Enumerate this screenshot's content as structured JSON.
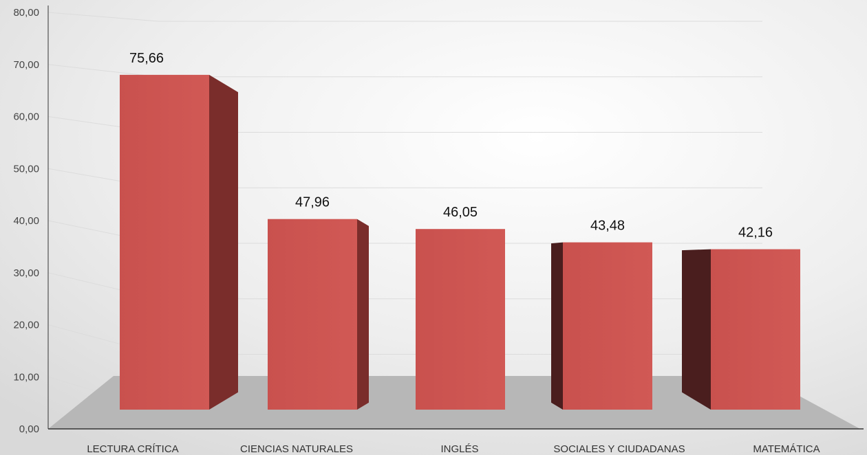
{
  "chart_data": {
    "type": "bar",
    "title": "",
    "xlabel": "",
    "ylabel": "",
    "categories": [
      "LECTURA CRÍTICA",
      "CIENCIAS NATURALES",
      "INGLÉS",
      "SOCIALES Y CIUDADANAS",
      "MATEMÁTICA"
    ],
    "values": [
      75.66,
      47.96,
      46.05,
      43.48,
      42.16
    ],
    "data_labels": [
      "75,66",
      "47,96",
      "46,05",
      "43,48",
      "42,16"
    ],
    "ylim": [
      0,
      80
    ],
    "y_ticks": [
      0,
      10,
      20,
      30,
      40,
      50,
      60,
      70,
      80
    ],
    "y_tick_labels": [
      "0,00",
      "10,00",
      "20,00",
      "30,00",
      "40,00",
      "50,00",
      "60,00",
      "70,00",
      "80,00"
    ],
    "grid": true,
    "legend": "none",
    "style": "3d-column",
    "colors": {
      "bar_front": "#c9514e",
      "bar_front_light": "#d15955",
      "bar_side": "#7a2d2b",
      "bar_side_dark": "#4a1e1e",
      "floor": "#b7b7b7",
      "gridline": "#dcdcdc",
      "axis": "#333333"
    }
  }
}
